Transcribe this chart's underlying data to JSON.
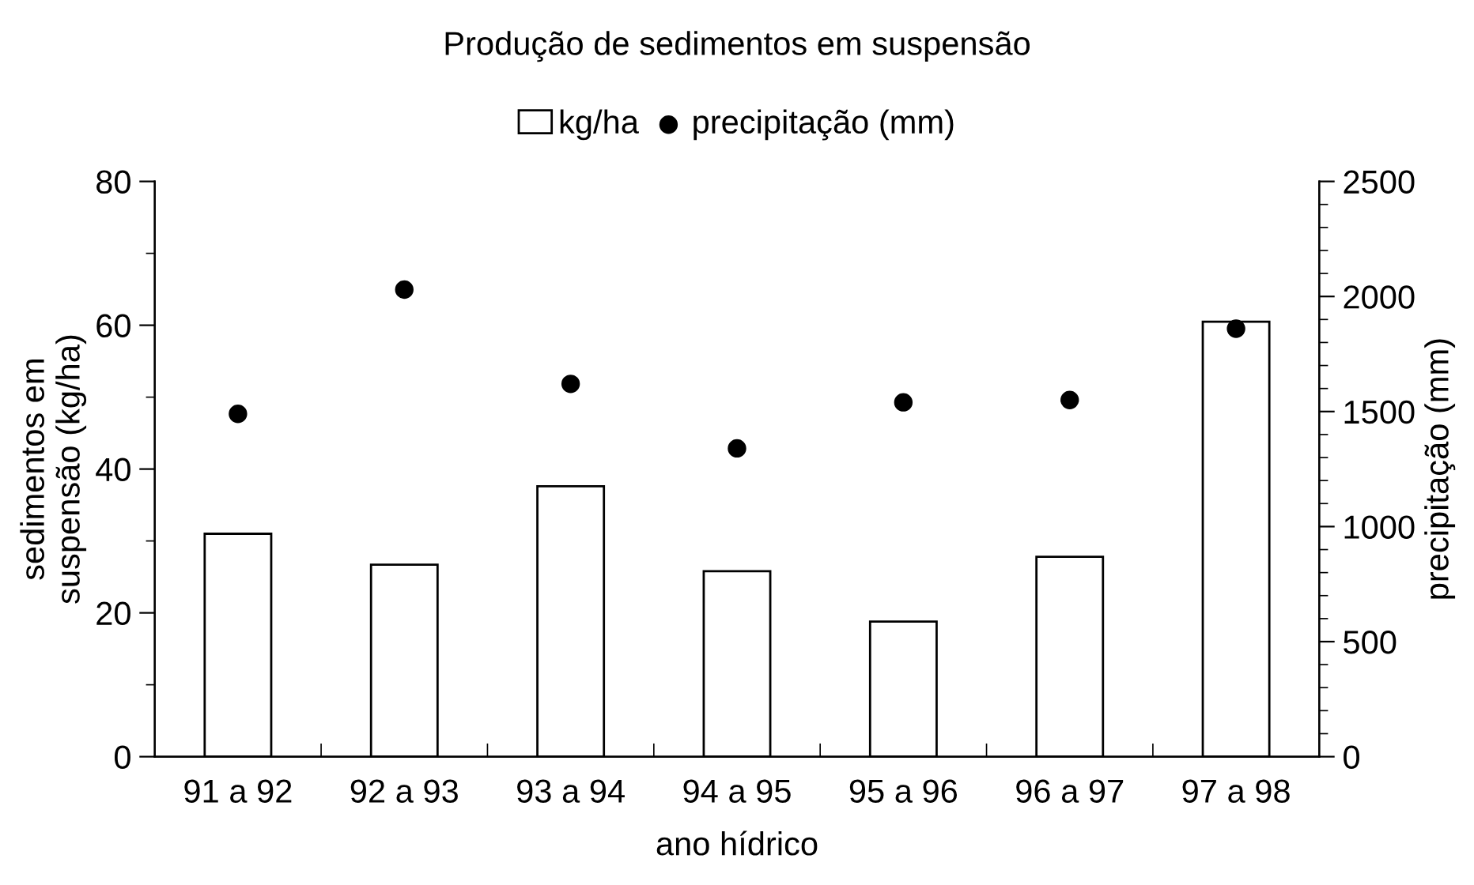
{
  "chart_data": {
    "type": "bar",
    "title": "Produção de sedimentos em suspensão",
    "xlabel": "ano hídrico",
    "ylabel": "sedimentos em\nsuspensão (kg/ha)",
    "y2label": "precipitação (mm)",
    "categories": [
      "91 a 92",
      "92 a 93",
      "93 a 94",
      "94 a 95",
      "95 a 96",
      "96 a 97",
      "97 a 98"
    ],
    "series": [
      {
        "name": "kg/ha",
        "color": "#ffffff",
        "values": [
          31.0,
          26.7,
          37.6,
          25.8,
          18.8,
          27.8,
          60.5
        ]
      },
      {
        "name": "precipitação (mm)",
        "type": "scatter",
        "axis": "y2",
        "color": "#000000",
        "marker": "circle",
        "values": [
          1490,
          2030,
          1620,
          1340,
          1540,
          1550,
          1860
        ]
      }
    ],
    "ylim": [
      0,
      80
    ],
    "yticks": [
      0,
      20,
      40,
      60,
      80
    ],
    "y2lim": [
      0,
      2500
    ],
    "y2ticks": [
      0,
      500,
      1000,
      1500,
      2000,
      2500
    ],
    "grid": false,
    "legend": "top"
  }
}
